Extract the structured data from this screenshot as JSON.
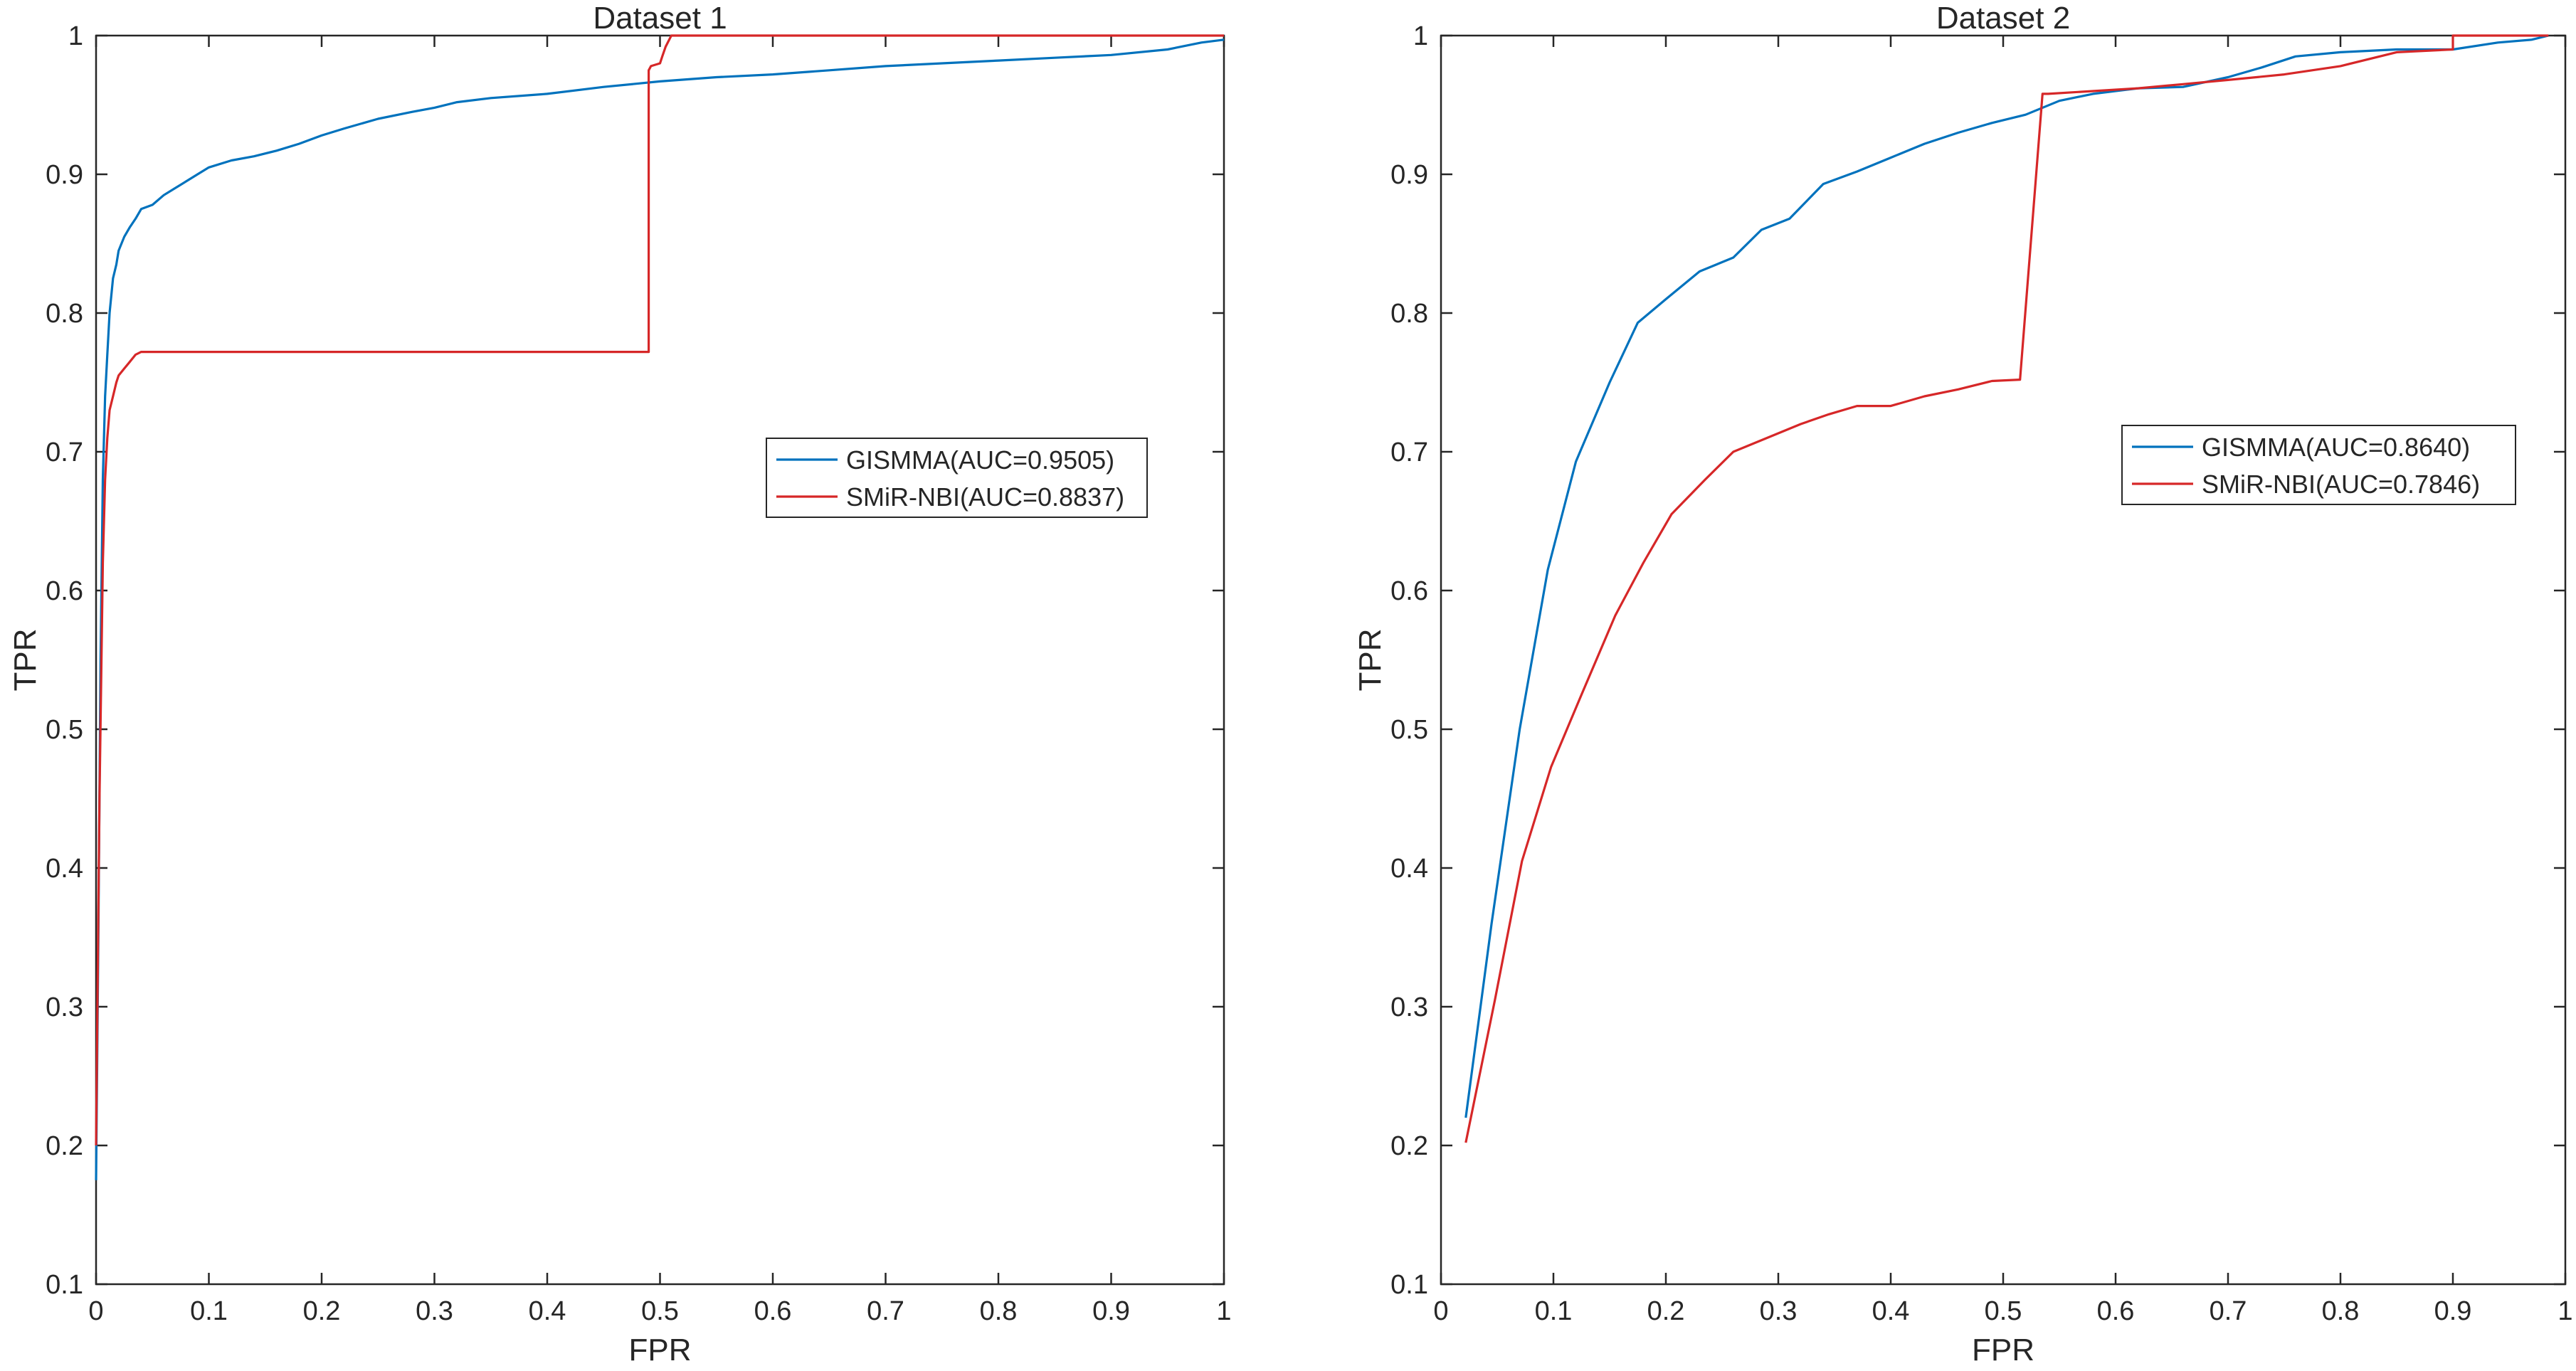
{
  "chart_data": [
    {
      "type": "line",
      "title": "Dataset 1",
      "xlabel": "FPR",
      "ylabel": "TPR",
      "xlim": [
        0,
        1
      ],
      "ylim": [
        0.1,
        1
      ],
      "xticks": [
        "0",
        "0.1",
        "0.2",
        "0.3",
        "0.4",
        "0.5",
        "0.6",
        "0.7",
        "0.8",
        "0.9",
        "1"
      ],
      "yticks": [
        "0.1",
        "0.2",
        "0.3",
        "0.4",
        "0.5",
        "0.6",
        "0.7",
        "0.8",
        "0.9",
        "1"
      ],
      "grid": false,
      "legend_position": "right-middle",
      "series": [
        {
          "name": "GISMMA(AUC=0.9505)",
          "color": "#0072BD",
          "x": [
            0,
            0.002,
            0.004,
            0.006,
            0.008,
            0.01,
            0.012,
            0.015,
            0.018,
            0.02,
            0.025,
            0.03,
            0.035,
            0.04,
            0.05,
            0.06,
            0.07,
            0.08,
            0.09,
            0.1,
            0.12,
            0.14,
            0.16,
            0.18,
            0.2,
            0.22,
            0.25,
            0.28,
            0.3,
            0.32,
            0.35,
            0.4,
            0.45,
            0.5,
            0.55,
            0.6,
            0.65,
            0.7,
            0.75,
            0.8,
            0.85,
            0.9,
            0.95,
            0.98,
            1
          ],
          "y": [
            0.175,
            0.35,
            0.55,
            0.68,
            0.74,
            0.77,
            0.8,
            0.825,
            0.835,
            0.845,
            0.855,
            0.862,
            0.868,
            0.875,
            0.878,
            0.885,
            0.89,
            0.895,
            0.9,
            0.905,
            0.91,
            0.913,
            0.917,
            0.922,
            0.928,
            0.933,
            0.94,
            0.945,
            0.948,
            0.952,
            0.955,
            0.958,
            0.963,
            0.967,
            0.97,
            0.972,
            0.975,
            0.978,
            0.98,
            0.982,
            0.984,
            0.986,
            0.99,
            0.995,
            0.997
          ]
        },
        {
          "name": "SMiR-NBI(AUC=0.8837)",
          "color": "#D62728",
          "x": [
            0,
            0.003,
            0.006,
            0.008,
            0.01,
            0.012,
            0.015,
            0.018,
            0.02,
            0.025,
            0.03,
            0.035,
            0.04,
            0.3,
            0.49,
            0.49,
            0.492,
            0.5,
            0.502,
            0.505,
            0.51,
            0.6,
            0.8,
            1
          ],
          "y": [
            0.2,
            0.45,
            0.62,
            0.68,
            0.71,
            0.73,
            0.74,
            0.75,
            0.755,
            0.76,
            0.765,
            0.77,
            0.772,
            0.772,
            0.772,
            0.975,
            0.978,
            0.98,
            0.985,
            0.992,
            1.0,
            1.0,
            1.0,
            1.0
          ]
        }
      ]
    },
    {
      "type": "line",
      "title": "Dataset 2",
      "xlabel": "FPR",
      "ylabel": "TPR",
      "xlim": [
        0,
        1
      ],
      "ylim": [
        0.1,
        1
      ],
      "xticks": [
        "0",
        "0.1",
        "0.2",
        "0.3",
        "0.4",
        "0.5",
        "0.6",
        "0.7",
        "0.8",
        "0.9",
        "1"
      ],
      "yticks": [
        "0.1",
        "0.2",
        "0.3",
        "0.4",
        "0.5",
        "0.6",
        "0.7",
        "0.8",
        "0.9",
        "1"
      ],
      "grid": false,
      "legend_position": "right-middle",
      "series": [
        {
          "name": "GISMMA(AUC=0.8640)",
          "color": "#0072BD",
          "x": [
            0.022,
            0.045,
            0.07,
            0.095,
            0.12,
            0.15,
            0.175,
            0.2,
            0.23,
            0.26,
            0.285,
            0.31,
            0.34,
            0.37,
            0.4,
            0.43,
            0.46,
            0.49,
            0.52,
            0.55,
            0.58,
            0.62,
            0.66,
            0.7,
            0.73,
            0.76,
            0.8,
            0.85,
            0.9,
            0.94,
            0.97,
            0.985
          ],
          "y": [
            0.22,
            0.36,
            0.5,
            0.615,
            0.693,
            0.75,
            0.793,
            0.81,
            0.83,
            0.84,
            0.86,
            0.868,
            0.893,
            0.902,
            0.912,
            0.922,
            0.93,
            0.937,
            0.943,
            0.953,
            0.958,
            0.962,
            0.963,
            0.97,
            0.977,
            0.985,
            0.988,
            0.99,
            0.99,
            0.995,
            0.997,
            1.0
          ]
        },
        {
          "name": "SMiR-NBI(AUC=0.7846)",
          "color": "#D62728",
          "x": [
            0.022,
            0.048,
            0.072,
            0.098,
            0.125,
            0.155,
            0.18,
            0.205,
            0.235,
            0.26,
            0.29,
            0.32,
            0.345,
            0.37,
            0.4,
            0.43,
            0.46,
            0.49,
            0.515,
            0.535,
            0.54,
            0.58,
            0.62,
            0.66,
            0.7,
            0.75,
            0.8,
            0.85,
            0.9,
            0.9,
            0.94,
            0.985
          ],
          "y": [
            0.202,
            0.305,
            0.405,
            0.473,
            0.525,
            0.582,
            0.62,
            0.655,
            0.68,
            0.7,
            0.71,
            0.72,
            0.727,
            0.733,
            0.733,
            0.74,
            0.745,
            0.751,
            0.752,
            0.958,
            0.958,
            0.96,
            0.962,
            0.965,
            0.968,
            0.972,
            0.978,
            0.988,
            0.99,
            1.0,
            1.0,
            1.0
          ]
        }
      ]
    }
  ]
}
